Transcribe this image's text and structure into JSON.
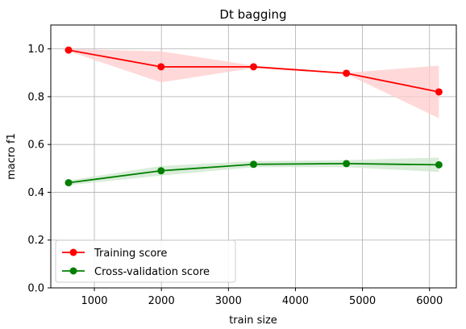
{
  "chart_data": {
    "type": "line",
    "title": "Dt bagging",
    "xlabel": "train size",
    "ylabel": "macro f1",
    "xlim": [
      350,
      6400
    ],
    "ylim": [
      0.0,
      1.1
    ],
    "xticks": [
      1000,
      2000,
      3000,
      4000,
      5000,
      6000
    ],
    "yticks": [
      0.0,
      0.2,
      0.4,
      0.6,
      0.8,
      1.0
    ],
    "xtick_labels": [
      "1000",
      "2000",
      "3000",
      "4000",
      "5000",
      "6000"
    ],
    "ytick_labels": [
      "0.0",
      "0.2",
      "0.4",
      "0.6",
      "0.8",
      "1.0"
    ],
    "grid": true,
    "legend_position": "lower-left",
    "x": [
      615,
      1995,
      3375,
      4760,
      6140
    ],
    "series": [
      {
        "name": "Training score",
        "color": "#ff0000",
        "band_color": "#ffcccc",
        "values": [
          0.995,
          0.925,
          0.925,
          0.898,
          0.82
        ],
        "band_lower": [
          0.99,
          0.86,
          0.92,
          0.895,
          0.71
        ],
        "band_upper": [
          1.0,
          0.99,
          0.93,
          0.9,
          0.93
        ]
      },
      {
        "name": "Cross-validation score",
        "color": "#008000",
        "band_color": "#cce6cc",
        "values": [
          0.44,
          0.49,
          0.517,
          0.52,
          0.515
        ],
        "band_lower": [
          0.43,
          0.47,
          0.505,
          0.505,
          0.485
        ],
        "band_upper": [
          0.45,
          0.51,
          0.53,
          0.535,
          0.545
        ]
      }
    ]
  }
}
